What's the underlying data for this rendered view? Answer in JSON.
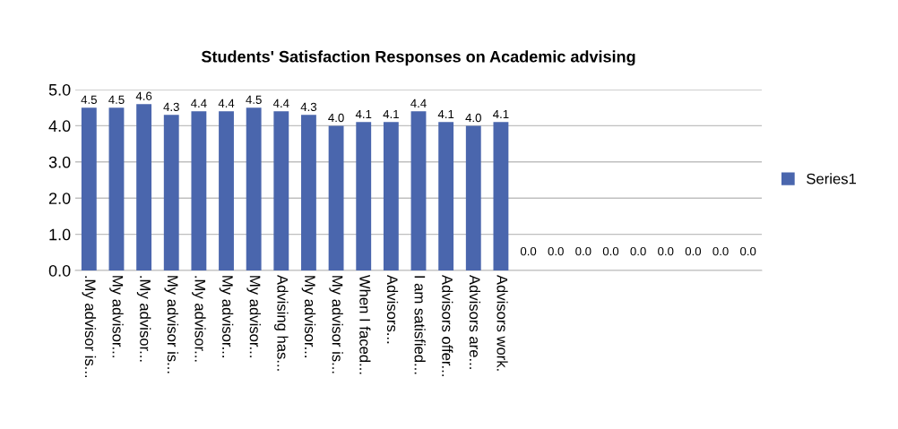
{
  "chart_data": {
    "type": "bar",
    "title": "Students' Satisfaction Responses on Academic advising",
    "categories": [
      ".My advisor is...",
      "My advisor...",
      ".My advisor...",
      "My advisor is...",
      ".My advisor...",
      "My advisor...",
      "My advisor...",
      "Advising has...",
      "My advisor...",
      "My advisor is...",
      "When I faced...",
      "Advisors...",
      "I am satisfied...",
      "Advisors offer...",
      "Advisors are...",
      "Advisors work.",
      null,
      null,
      null,
      null,
      null,
      null,
      null,
      null,
      null
    ],
    "series": [
      {
        "name": "Series1",
        "color": "#4a66ad",
        "values": [
          4.5,
          4.5,
          4.6,
          4.3,
          4.4,
          4.4,
          4.5,
          4.4,
          4.3,
          4.0,
          4.1,
          4.1,
          4.4,
          4.1,
          4.0,
          4.1,
          0.0,
          0.0,
          0.0,
          0.0,
          0.0,
          0.0,
          0.0,
          0.0,
          0.0
        ]
      }
    ],
    "ylim": [
      0,
      5
    ],
    "yticks": [
      {
        "value": 0,
        "label": "0.0"
      },
      {
        "value": 1,
        "label": "1.0"
      },
      {
        "value": 2,
        "label": "2.0"
      },
      {
        "value": 3,
        "label": "3.0"
      },
      {
        "value": 4,
        "label": "4.0"
      },
      {
        "value": 5,
        "label": "5.0"
      }
    ],
    "value_labels": [
      "4.5",
      "4.5",
      "4.6",
      "4.3",
      "4.4",
      "4.4",
      "4.5",
      "4.4",
      "4.3",
      "4.0",
      "4.1",
      "4.1",
      "4.4",
      "4.1",
      "4.0",
      "4.1",
      "0.0",
      "0.0",
      "0.0",
      "0.0",
      "0.0",
      "0.0",
      "0.0",
      "0.0",
      "0.0"
    ],
    "grid": "y",
    "legend": "right"
  }
}
